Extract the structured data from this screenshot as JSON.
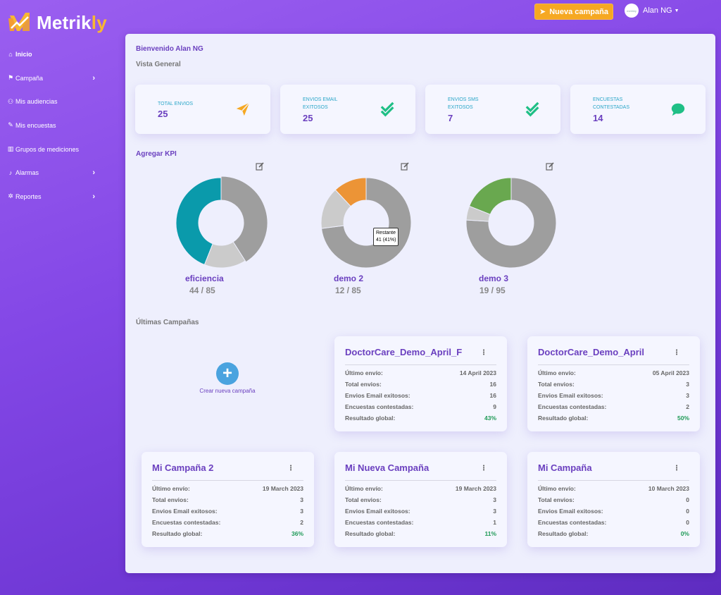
{
  "brand": {
    "name_main": "Metrik",
    "name_accent": "ly"
  },
  "topbar": {
    "new_campaign_label": "Nueva campaña",
    "user_name": "Alan NG",
    "avatar_text": "metrikly"
  },
  "sidebar": {
    "items": [
      {
        "label": "Inicio",
        "icon": "home-icon",
        "active": true,
        "has_chevron": false
      },
      {
        "label": "Campaña",
        "icon": "flag-icon",
        "active": false,
        "has_chevron": true
      },
      {
        "label": "Mis audiencias",
        "icon": "users-icon",
        "active": false,
        "has_chevron": false
      },
      {
        "label": "Mis encuestas",
        "icon": "pencil-icon",
        "active": false,
        "has_chevron": false
      },
      {
        "label": "Grupos de mediciones",
        "icon": "chart-icon",
        "active": false,
        "has_chevron": false
      },
      {
        "label": "Alarmas",
        "icon": "bell-icon",
        "active": false,
        "has_chevron": true
      },
      {
        "label": "Reportes",
        "icon": "gear-icon",
        "active": false,
        "has_chevron": true
      }
    ]
  },
  "main": {
    "welcome": "Bienvenido Alan NG",
    "overview_title": "Vista General",
    "stats": [
      {
        "label_l1": "TOTAL ENVIOS",
        "label_l2": "",
        "value": "25",
        "icon": "paper-plane-icon",
        "icon_color": "#f6a822"
      },
      {
        "label_l1": "ENVIOS EMAIL",
        "label_l2": "EXITOSOS",
        "value": "25",
        "icon": "double-check-icon",
        "icon_color": "#1fbf86"
      },
      {
        "label_l1": "ENVIOS SMS",
        "label_l2": "EXITOSOS",
        "value": "7",
        "icon": "double-check-icon",
        "icon_color": "#1fbf86"
      },
      {
        "label_l1": "ENCUESTAS",
        "label_l2": "CONTESTADAS",
        "value": "14",
        "icon": "chat-bubble-icon",
        "icon_color": "#1fbf86"
      }
    ],
    "kpi_title": "Agregar KPI",
    "kpis": [
      {
        "name": "eficiencia",
        "value_text": "44 / 85",
        "achieved": 44,
        "target": 85,
        "max": 100,
        "color": "#0a9aab"
      },
      {
        "name": "demo 2",
        "value_text": "12 / 85",
        "achieved": 12,
        "target": 85,
        "max": 100,
        "color": "#ec9436"
      },
      {
        "name": "demo 3",
        "value_text": "19 / 95",
        "achieved": 19,
        "target": 95,
        "max": 100,
        "color": "#69a84f"
      }
    ],
    "tooltip": {
      "line1": "Restante",
      "line2": "41 (41%)"
    },
    "campaigns_title": "Últimas Campañas",
    "new_campaign_label": "Crear nueva campaña",
    "row_labels": {
      "last_send": "Último envío:",
      "total": "Total envios:",
      "email_ok": "Envios Email exitosos:",
      "answered": "Encuestas contestadas:",
      "result": "Resultado global:"
    },
    "campaigns": [
      {
        "title": "DoctorCare_Demo_April_F",
        "last_send": "14 April 2023",
        "total": "16",
        "email_ok": "16",
        "answered": "9",
        "result": "43%"
      },
      {
        "title": "DoctorCare_Demo_April",
        "last_send": "05 April 2023",
        "total": "3",
        "email_ok": "3",
        "answered": "2",
        "result": "50%"
      },
      {
        "title": "Mi Campaña 2",
        "last_send": "19 March 2023",
        "total": "3",
        "email_ok": "3",
        "answered": "2",
        "result": "36%"
      },
      {
        "title": "Mi Nueva Campaña",
        "last_send": "19 March 2023",
        "total": "3",
        "email_ok": "3",
        "answered": "1",
        "result": "11%"
      },
      {
        "title": "Mi Campaña",
        "last_send": "10 March 2023",
        "total": "0",
        "email_ok": "0",
        "answered": "0",
        "result": "0%"
      }
    ]
  }
}
